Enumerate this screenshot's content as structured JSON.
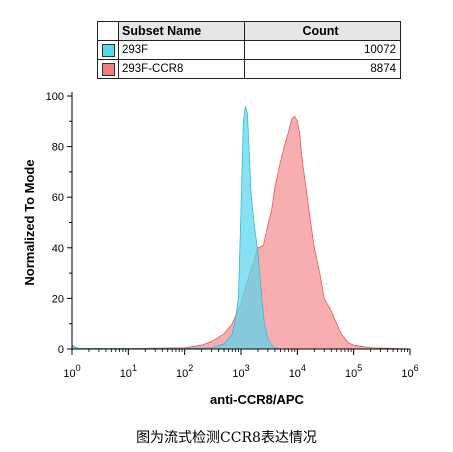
{
  "legend": {
    "header_name": "Subset Name",
    "header_count": "Count",
    "rows": [
      {
        "name": "293F",
        "count": "10072",
        "color": "#5ad6ee"
      },
      {
        "name": "293F-CCR8",
        "count": "8874",
        "color": "#f47c7c"
      }
    ]
  },
  "caption": "图为流式检测CCR8表达情况",
  "chart_data": {
    "type": "area",
    "title": "",
    "xlabel": "anti-CCR8/APC",
    "ylabel": "Normalized To Mode",
    "x_scale": "log",
    "xlim": [
      1,
      1000000
    ],
    "ylim": [
      0,
      100
    ],
    "x_ticks": [
      1,
      10,
      100,
      1000,
      10000,
      100000,
      1000000
    ],
    "y_ticks": [
      0,
      20,
      40,
      60,
      80,
      100
    ],
    "grid": false,
    "series": [
      {
        "name": "293F",
        "color": "#5ad6ee",
        "stroke": "#38b6d4",
        "x": [
          1,
          1.3,
          10,
          100,
          300,
          500,
          700,
          800,
          900,
          1000,
          1100,
          1200,
          1300,
          1400,
          1500,
          1700,
          2000,
          2300,
          2600,
          3000,
          3500,
          4000,
          5000
        ],
        "y": [
          1.5,
          0.2,
          0.2,
          0.2,
          0.5,
          2,
          6,
          12,
          20,
          55,
          90,
          96,
          93,
          78,
          62,
          50,
          38,
          22,
          10,
          4,
          1.5,
          0.5,
          0
        ]
      },
      {
        "name": "293F-CCR8",
        "color": "#f47c7c",
        "stroke": "#e05a5a",
        "x": [
          1,
          1.3,
          10,
          100,
          200,
          300,
          500,
          700,
          1000,
          1300,
          1700,
          2000,
          2500,
          3000,
          3500,
          4000,
          5000,
          6000,
          7000,
          8000,
          9000,
          10000,
          11000,
          12000,
          14000,
          17000,
          20000,
          25000,
          30000,
          40000,
          50000,
          60000,
          80000,
          100000,
          200000,
          1000000
        ],
        "y": [
          1.5,
          0.2,
          0.2,
          0.5,
          1.5,
          3,
          6,
          10,
          18,
          27,
          35,
          40,
          41,
          49,
          55,
          64,
          74,
          81,
          86,
          91,
          92,
          90,
          85,
          76,
          65,
          51,
          40,
          30,
          20,
          15,
          10,
          6,
          2.5,
          1.5,
          0.5,
          0
        ]
      }
    ]
  }
}
